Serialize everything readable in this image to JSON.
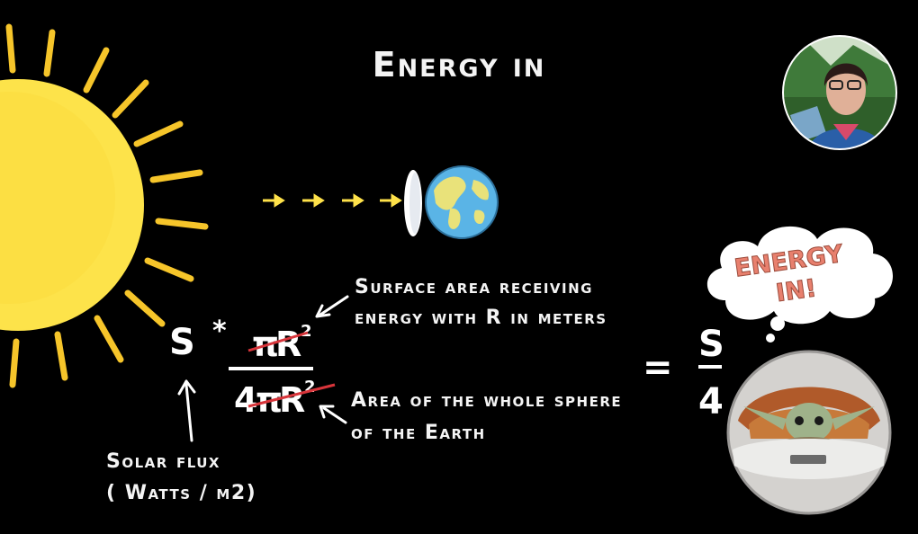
{
  "slide": {
    "title": "Energy in",
    "solar_flux_label": "Solar flux",
    "solar_flux_units": "( Watts / m2)",
    "surface_area_line1": "Surface area receiving",
    "surface_area_line2": "energy with R in meters",
    "sphere_area_line1": "Area of the whole sphere",
    "sphere_area_line2": "of the Earth",
    "formula": {
      "s": "S",
      "times": "*",
      "numerator_pi": "π",
      "numerator_r": "R",
      "numerator_exp": "2",
      "denominator_4": "4",
      "denominator_pi": "π",
      "denominator_r": "R",
      "denominator_exp": "2",
      "equals": "=",
      "result_numerator": "S",
      "result_denominator": "4"
    },
    "thought_bubble_line1": "ENERGY",
    "thought_bubble_line2": "IN!"
  },
  "colors": {
    "background": "#000000",
    "sun": "#fde34a",
    "sun_rays": "#f6c52a",
    "arrows": "#ffe24a",
    "strike": "#d8353b",
    "bubble_text": "#e8806e"
  },
  "icons": [
    "sun-icon",
    "earth-icon",
    "thought-bubble-icon",
    "presenter-avatar",
    "character-pod-icon"
  ]
}
